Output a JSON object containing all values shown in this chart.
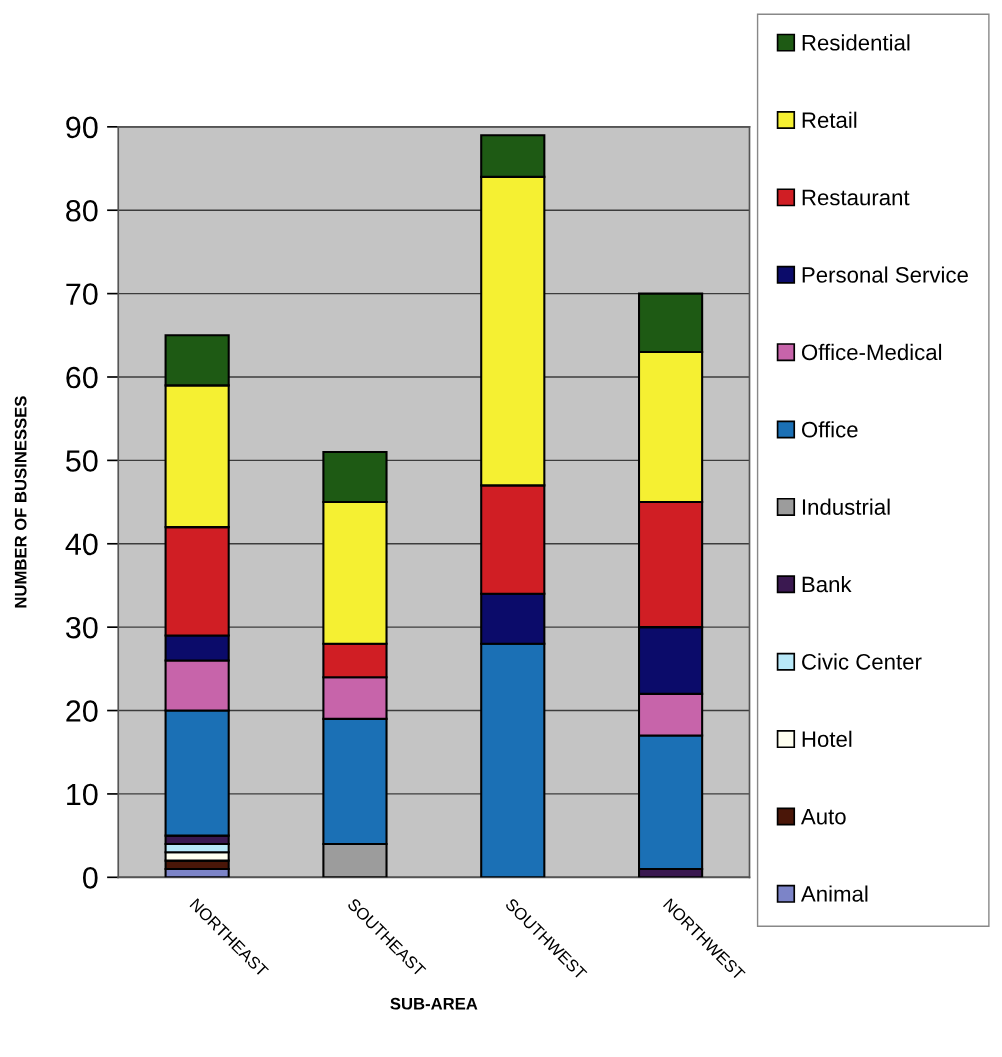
{
  "chart_data": {
    "type": "bar",
    "stacked": true,
    "xlabel": "SUB-AREA",
    "ylabel": "NUMBER OF BUSINESSES",
    "categories": [
      "NORTHEAST",
      "SOUTHEAST",
      "SOUTHWEST",
      "NORTHWEST"
    ],
    "series": [
      {
        "name": "Animal",
        "color": "#7c84c8",
        "values": [
          1,
          null,
          null,
          null
        ]
      },
      {
        "name": "Auto",
        "color": "#4a1608",
        "values": [
          1,
          null,
          null,
          null
        ]
      },
      {
        "name": "Hotel",
        "color": "#fffff0",
        "values": [
          1,
          null,
          null,
          null
        ]
      },
      {
        "name": "Civic Center",
        "color": "#b8e8f8",
        "values": [
          1,
          null,
          null,
          null
        ]
      },
      {
        "name": "Bank",
        "color": "#3a1850",
        "values": [
          1,
          null,
          null,
          1
        ]
      },
      {
        "name": "Industrial",
        "color": "#9c9c9c",
        "values": [
          null,
          4,
          null,
          null
        ]
      },
      {
        "name": "Office",
        "color": "#1b70b5",
        "values": [
          15,
          15,
          28,
          16
        ]
      },
      {
        "name": "Office-Medical",
        "color": "#c764aa",
        "values": [
          6,
          5,
          null,
          5
        ]
      },
      {
        "name": "Personal Service",
        "color": "#0b0b6a",
        "values": [
          3,
          null,
          6,
          8
        ]
      },
      {
        "name": "Restaurant",
        "color": "#d01e24",
        "values": [
          13,
          4,
          13,
          15
        ]
      },
      {
        "name": "Retail",
        "color": "#f5f032",
        "values": [
          17,
          17,
          37,
          18
        ]
      },
      {
        "name": "Residential",
        "color": "#1e5a14",
        "values": [
          6,
          6,
          5,
          7
        ]
      }
    ],
    "ylim": [
      0,
      90
    ],
    "yticks": [
      0,
      10,
      20,
      30,
      40,
      50,
      60,
      70,
      80,
      90
    ],
    "grid": "y",
    "legend": "right"
  }
}
